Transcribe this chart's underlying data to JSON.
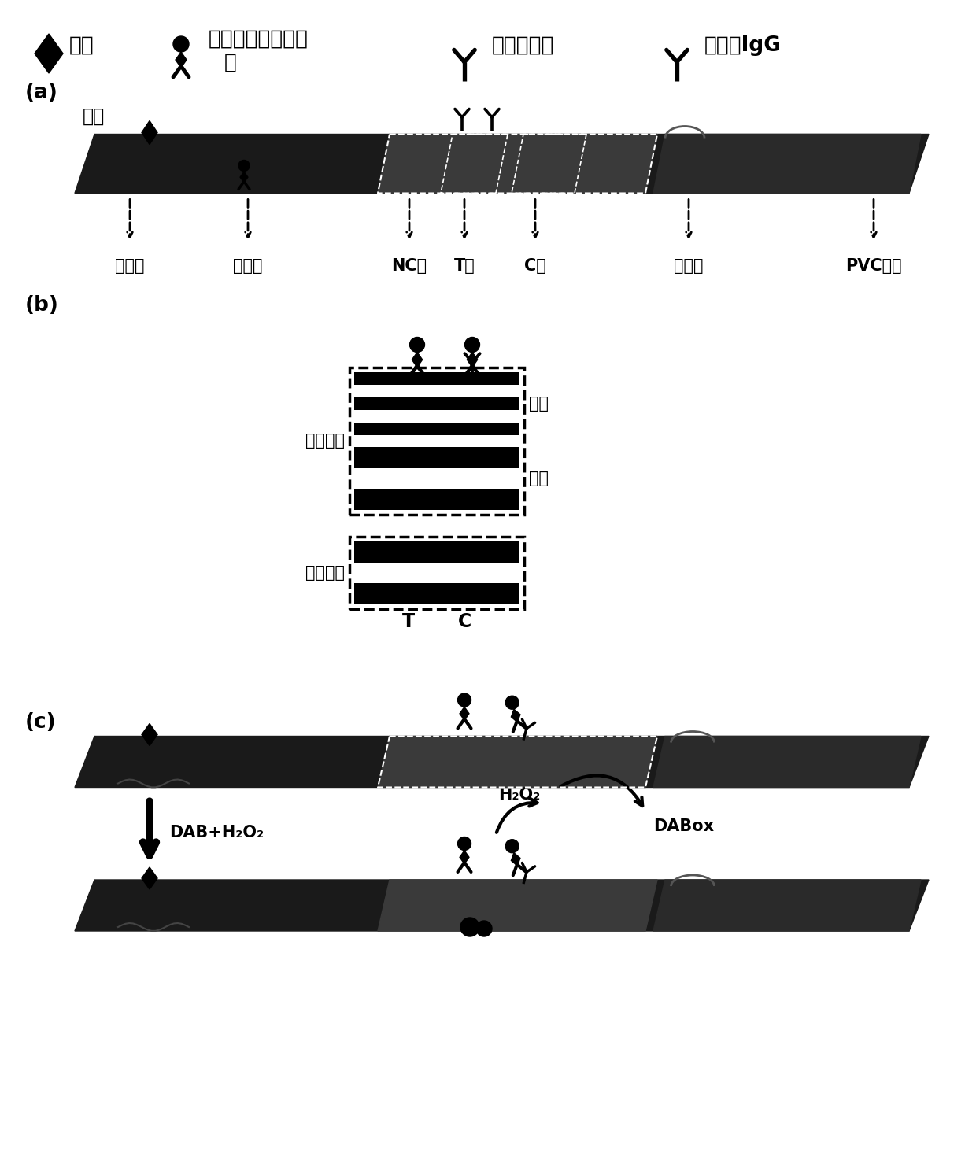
{
  "bg_color": "#ffffff",
  "fg_color": "#000000",
  "legend_items": [
    "抗原",
    "金磁纳米酶免疫探\n针",
    "多克隆抗体",
    "羊抗鼠IgG"
  ],
  "section_labels": [
    "(a)",
    "(b)",
    "(c)"
  ],
  "strip_labels_a": [
    "样品垫",
    "结合垫",
    "NC膜",
    "T线",
    "C线",
    "吸水纸",
    "PVC底板"
  ],
  "strip_label_sample": "样品",
  "valid_result": "有效结果",
  "invalid_result": "无效结果",
  "negative": "阴性",
  "positive": "阳性",
  "tc_label": [
    "T",
    "C"
  ],
  "dab_label": "DAB+H₂O₂",
  "h2o2_label": "H₂O₂",
  "dabox_label": "DABox"
}
